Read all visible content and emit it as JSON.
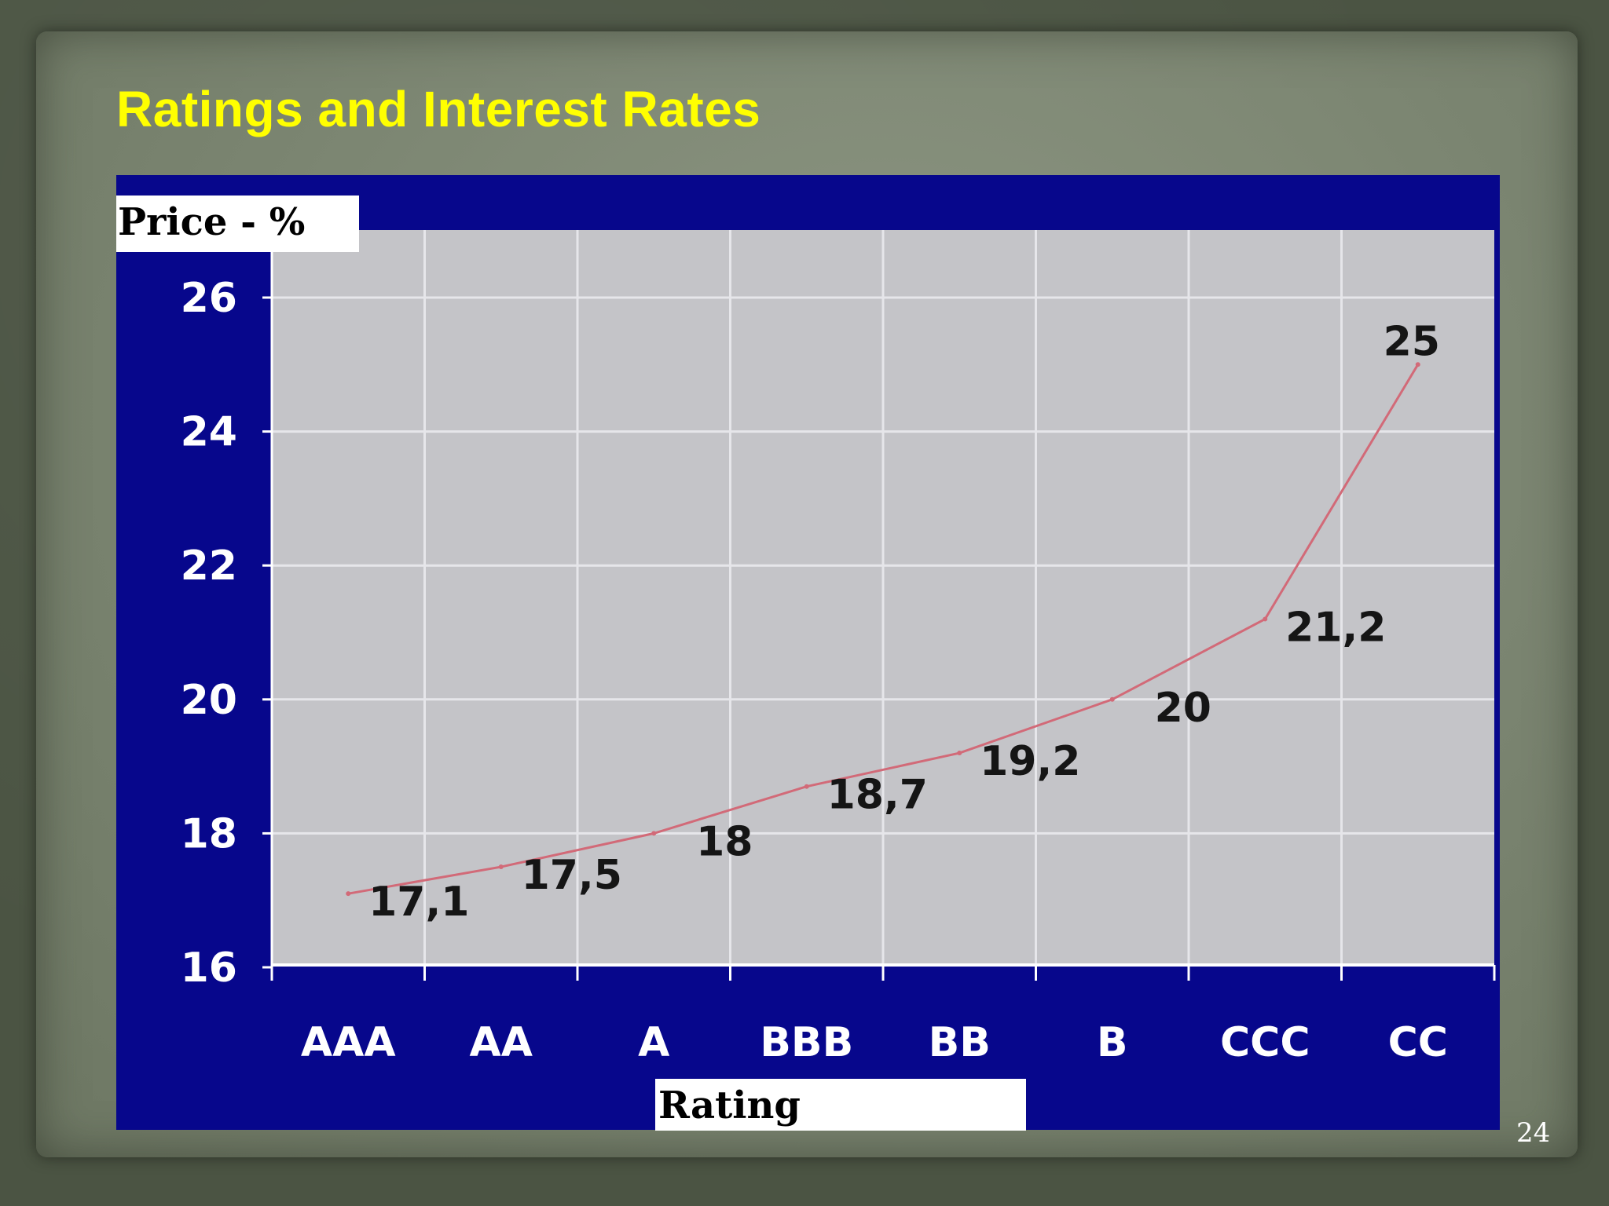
{
  "slide": {
    "title": "Ratings and Interest Rates",
    "page_number": "24"
  },
  "colors": {
    "title": "#ffff00",
    "chart_frame": "#07078c",
    "plot_area": "#c4c4c8",
    "grid": "#e6e6ea",
    "line": "#d26a78",
    "tick_text": "#ffffff",
    "data_label_text": "#151515"
  },
  "chart_data": {
    "type": "line",
    "title": "",
    "ylabel": "Price - %",
    "xlabel": "Rating",
    "categories": [
      "AAA",
      "AA",
      "A",
      "BBB",
      "BB",
      "B",
      "CCC",
      "CC"
    ],
    "series": [
      {
        "values": [
          17.1,
          17.5,
          18,
          18.7,
          19.2,
          20,
          21.2,
          25
        ]
      }
    ],
    "data_labels": [
      "17,1",
      "17,5",
      "18",
      "18,7",
      "19,2",
      "20",
      "21,2",
      "25"
    ],
    "ylim": [
      16,
      26
    ],
    "yticks": [
      "16",
      "18",
      "20",
      "22",
      "24",
      "26"
    ],
    "grid": true,
    "legend": "none"
  }
}
